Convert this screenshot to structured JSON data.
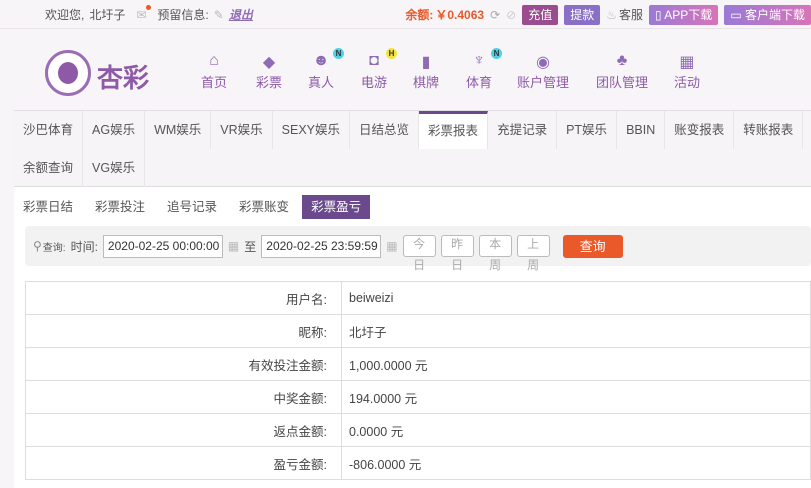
{
  "top": {
    "welcome": "欢迎您,",
    "username": "北圩子",
    "reserved_label": "预留信息:",
    "logout": "退出",
    "balance_label": "余额:",
    "balance": "￥0.4063",
    "recharge": "充值",
    "withdraw": "提款",
    "service": "客服",
    "app_download": "APP下载",
    "client_download": "客户端下载"
  },
  "colors": {
    "accent": "#6a4a8c",
    "balance": "#e9592a",
    "query_button": "#e9592a"
  },
  "logo": {
    "text": "杏彩"
  },
  "nav": [
    {
      "label": "首页",
      "icon": "home-icon"
    },
    {
      "label": "彩票",
      "icon": "lottery-icon"
    },
    {
      "label": "真人",
      "icon": "live-icon",
      "badge": "N"
    },
    {
      "label": "电游",
      "icon": "gamepad-icon",
      "badge": "H"
    },
    {
      "label": "棋牌",
      "icon": "cards-icon"
    },
    {
      "label": "体育",
      "icon": "trophy-icon",
      "badge": "N"
    },
    {
      "label": "账户管理",
      "icon": "account-icon"
    },
    {
      "label": "团队管理",
      "icon": "team-icon"
    },
    {
      "label": "活动",
      "icon": "gift-icon"
    }
  ],
  "tabs": [
    "沙巴体育",
    "AG娱乐",
    "WM娱乐",
    "VR娱乐",
    "SEXY娱乐",
    "日结总览",
    "彩票报表",
    "充提记录",
    "PT娱乐",
    "BBIN",
    "账变报表",
    "转账报表",
    "余额查询",
    "VG娱乐"
  ],
  "active_tab": "彩票报表",
  "subtabs": [
    "彩票日结",
    "彩票投注",
    "追号记录",
    "彩票账变",
    "彩票盈亏"
  ],
  "active_subtab": "彩票盈亏",
  "query": {
    "label": "查询:",
    "time_label": "时间:",
    "start": "2020-02-25 00:00:00",
    "to": "至",
    "end": "2020-02-25 23:59:59",
    "quick": [
      [
        "今",
        "日"
      ],
      [
        "昨",
        "日"
      ],
      [
        "本",
        "周"
      ],
      [
        "上",
        "周"
      ]
    ],
    "submit": "查询"
  },
  "report": [
    {
      "label": "用户名:",
      "value": "beiweizi"
    },
    {
      "label": "昵称:",
      "value": "北圩子"
    },
    {
      "label": "有效投注金额:",
      "value": "1,000.0000 元"
    },
    {
      "label": "中奖金额:",
      "value": "194.0000 元"
    },
    {
      "label": "返点金额:",
      "value": "0.0000 元"
    },
    {
      "label": "盈亏金额:",
      "value": "-806.0000 元"
    }
  ]
}
